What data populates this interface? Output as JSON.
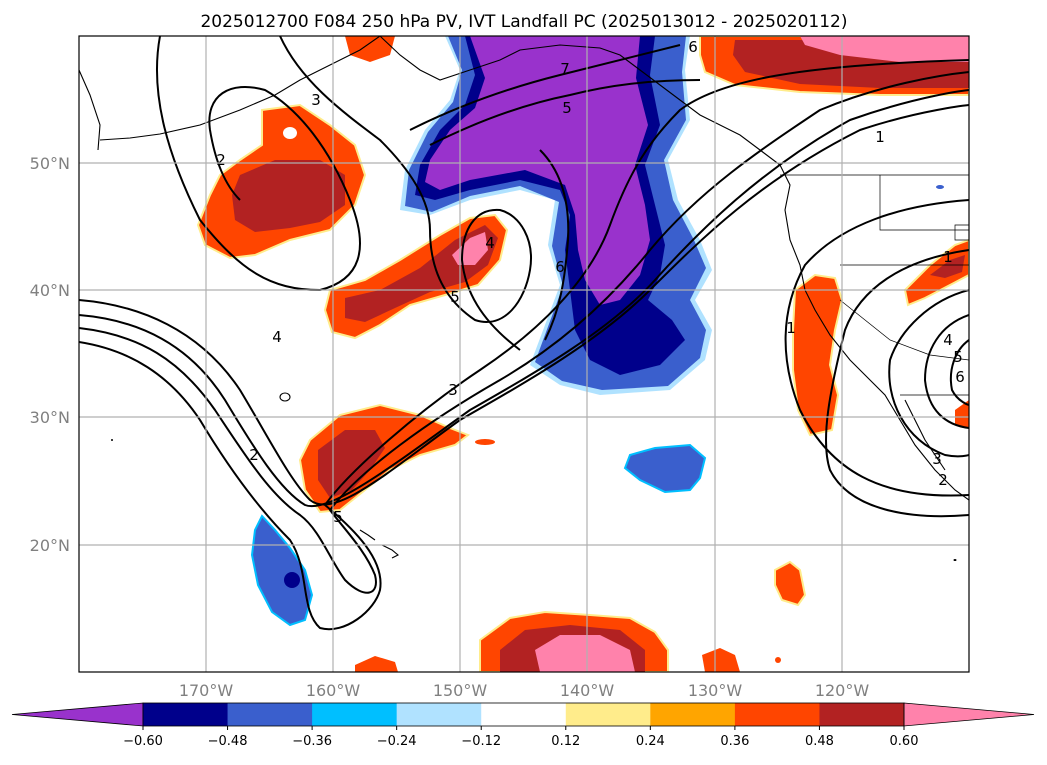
{
  "title": "2025012700 F084 250 hPa PV, IVT Landfall PC (2025013012 - 2025020112)",
  "map": {
    "lon_ticks": [
      "170°W",
      "160°W",
      "150°W",
      "140°W",
      "130°W",
      "120°W"
    ],
    "lat_ticks": [
      "50°N",
      "40°N",
      "30°N",
      "20°N"
    ],
    "lon_range": [
      -180,
      -110
    ],
    "lat_range": [
      10,
      60
    ],
    "grid": true
  },
  "contour_labels": [
    "7",
    "6",
    "5",
    "1",
    "2",
    "3",
    "4",
    "5",
    "4",
    "3",
    "2",
    "6",
    "5",
    "1",
    "1",
    "4",
    "5",
    "6",
    "3",
    "2"
  ],
  "colorbar": {
    "ticks": [
      "−0.60",
      "−0.48",
      "−0.36",
      "−0.24",
      "−0.12",
      "0.12",
      "0.24",
      "0.36",
      "0.48",
      "0.60"
    ],
    "colors": [
      "#9932cc",
      "#00008b",
      "#3a5fcd",
      "#00bfff",
      "#b0e2ff",
      "#ffffff",
      "#ffec8b",
      "#ffa500",
      "#ff4500",
      "#b22222",
      "#ff82ab"
    ],
    "extend": "both"
  },
  "palette": {
    "purple": "#9932cc",
    "navy": "#00008b",
    "blue": "#3a5fcd",
    "cyan": "#00bfff",
    "orange": "#ff4500",
    "darkred": "#b22222",
    "pink": "#ff82ab",
    "yellow": "#ffec8b"
  }
}
